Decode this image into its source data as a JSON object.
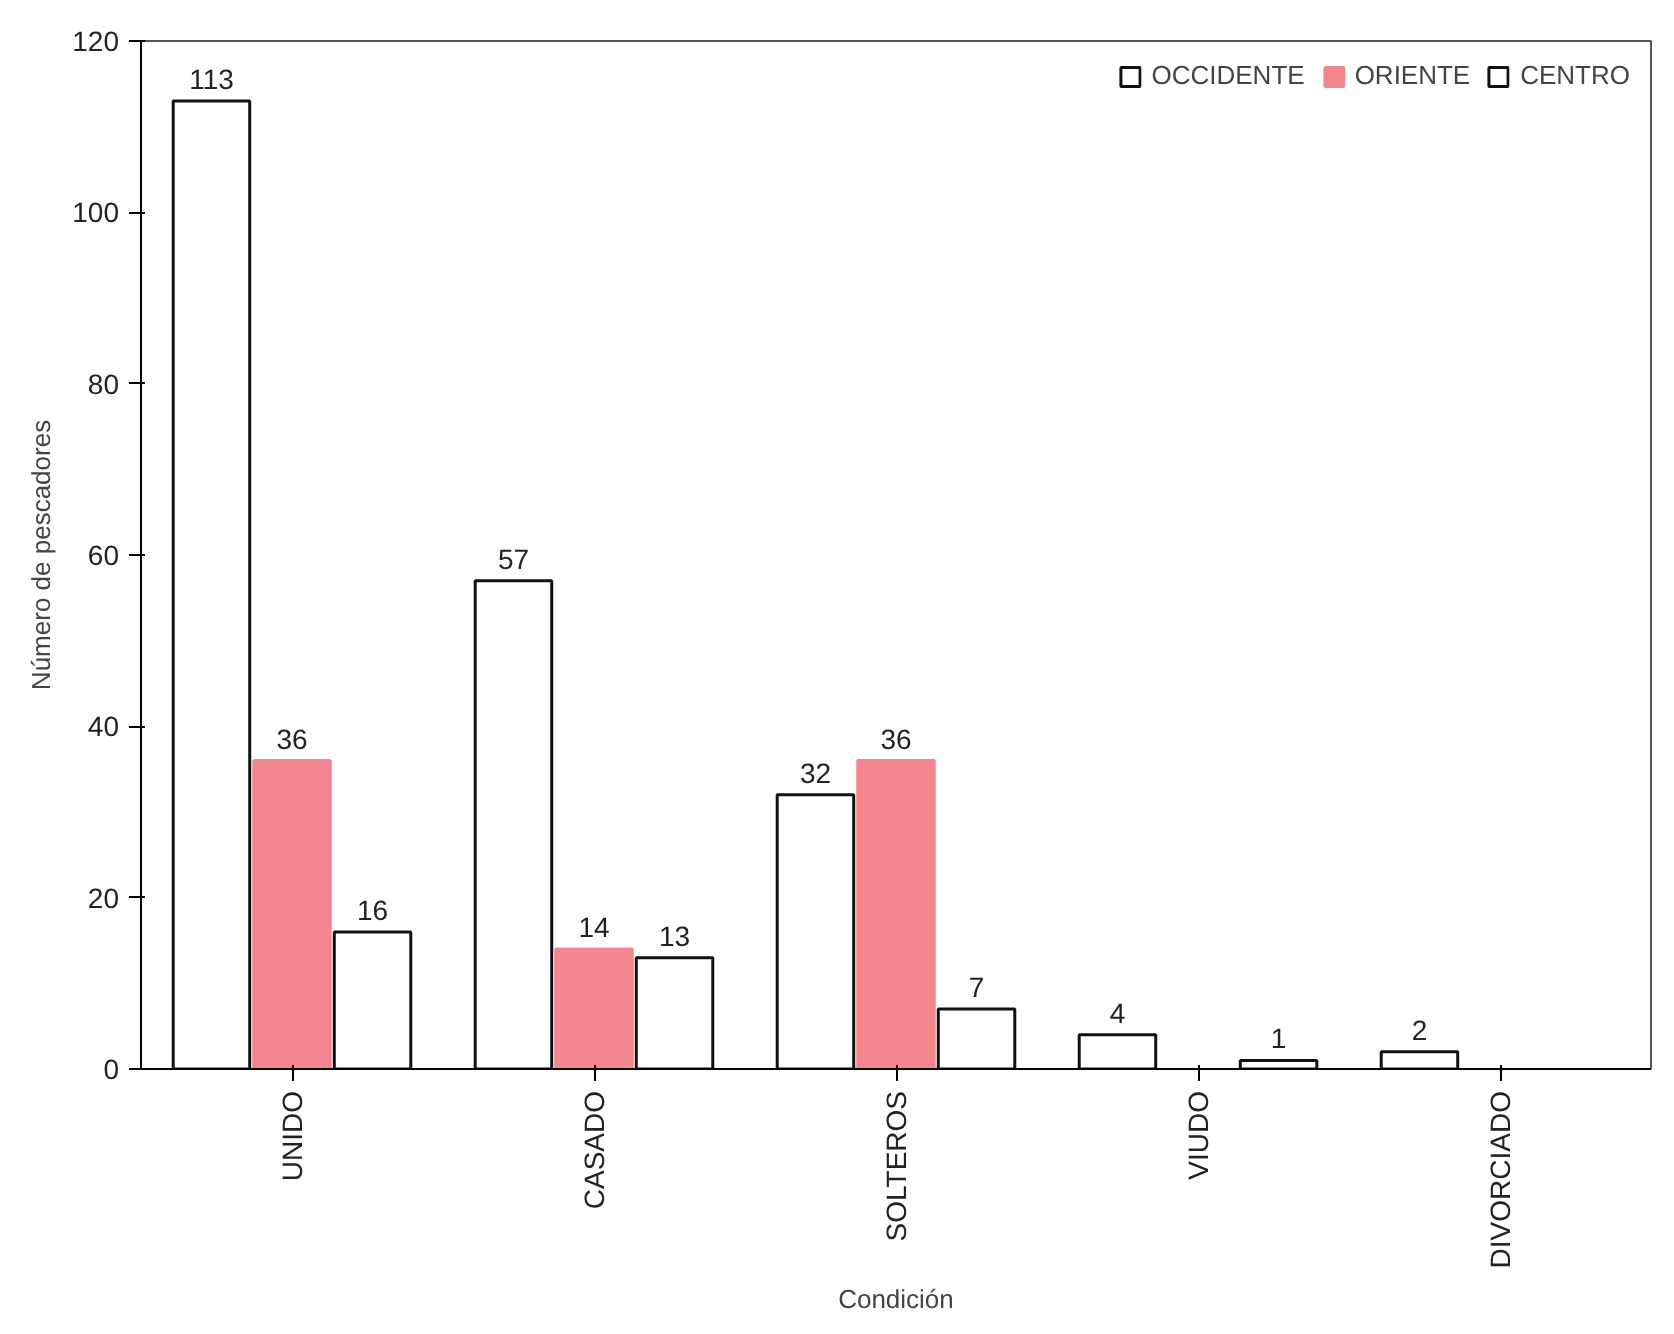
{
  "chart_data": {
    "type": "bar",
    "xlabel": "Condición",
    "ylabel": "Número de pescadores",
    "categories": [
      "UNIDO",
      "CASADO",
      "SOLTEROS",
      "VIUDO",
      "DIVORCIADO"
    ],
    "series": [
      {
        "name": "OCCIDENTE",
        "color": "#ffffff",
        "values": [
          113,
          57,
          32,
          4,
          2
        ]
      },
      {
        "name": "ORIENTE",
        "color": "#f4868f",
        "values": [
          36,
          14,
          36,
          null,
          null
        ]
      },
      {
        "name": "CENTRO",
        "color": "#ffffff",
        "values": [
          16,
          13,
          7,
          1,
          null
        ]
      }
    ],
    "ylim": [
      0,
      120
    ],
    "yticks": [
      0,
      20,
      40,
      60,
      80,
      100,
      120
    ],
    "data_labels": true,
    "legend": "top right",
    "grid": false
  }
}
